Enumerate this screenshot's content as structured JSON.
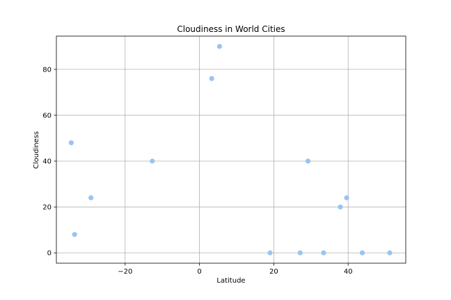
{
  "chart_data": {
    "type": "scatter",
    "title": "Cloudiness in World Cities",
    "xlabel": "Latitude",
    "ylabel": "Cloudiness",
    "xlim": [
      -38.5,
      55.5
    ],
    "ylim": [
      -4.5,
      94.5
    ],
    "xticks": [
      -20,
      0,
      20,
      40
    ],
    "yticks": [
      0,
      20,
      40,
      60,
      80
    ],
    "grid": true,
    "marker_color": "#99c4f2",
    "series": [
      {
        "points": [
          {
            "x": -34.5,
            "y": 48
          },
          {
            "x": -33.6,
            "y": 8
          },
          {
            "x": -29.2,
            "y": 24
          },
          {
            "x": -12.7,
            "y": 40
          },
          {
            "x": 3.3,
            "y": 76
          },
          {
            "x": 5.4,
            "y": 90
          },
          {
            "x": 19.0,
            "y": 0
          },
          {
            "x": 27.1,
            "y": 0
          },
          {
            "x": 29.2,
            "y": 40
          },
          {
            "x": 33.4,
            "y": 0
          },
          {
            "x": 37.9,
            "y": 20
          },
          {
            "x": 39.6,
            "y": 24
          },
          {
            "x": 43.8,
            "y": 0
          },
          {
            "x": 51.2,
            "y": 0
          }
        ]
      }
    ]
  }
}
